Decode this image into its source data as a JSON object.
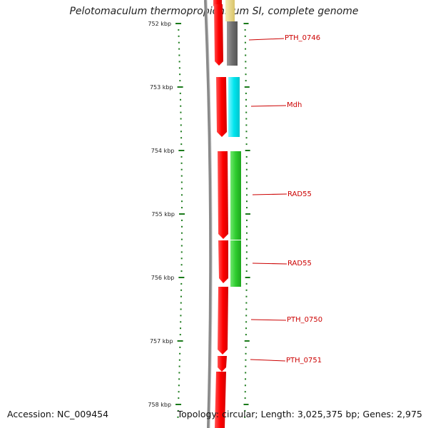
{
  "title": "Pelotomaculum thermopropionicum SI, complete genome",
  "accession": "Accession: NC_009454",
  "topology": "Topology: circular; Length: 3,025,375 bp; Genes: 2,975",
  "scale_labels": [
    "752 kbp",
    "753 kbp",
    "754 kbp",
    "755 kbp",
    "756 kbp",
    "757 kbp",
    "758 kbp"
  ],
  "genes": [
    {
      "label": "PTH_0746",
      "color": "#cc0000",
      "track_color": "#707070"
    },
    {
      "label": "Mdh",
      "color": "#cc0000",
      "track_color": "#00e5ee"
    },
    {
      "label": "RAD55",
      "color": "#cc0000",
      "track_color": "#2ecc2e"
    },
    {
      "label": "RAD55",
      "color": "#cc0000",
      "track_color": "#2ecc2e"
    },
    {
      "label": "PTH_0750",
      "color": "#cc0000"
    },
    {
      "label": "PTH_0751",
      "color": "#cc0000"
    }
  ],
  "colors": {
    "forward_strand": "#ff1111",
    "backbone": "#8a8a8a",
    "tick": "#1a7a1a",
    "label": "#cc0000",
    "top_partial": "#e8d98a"
  }
}
